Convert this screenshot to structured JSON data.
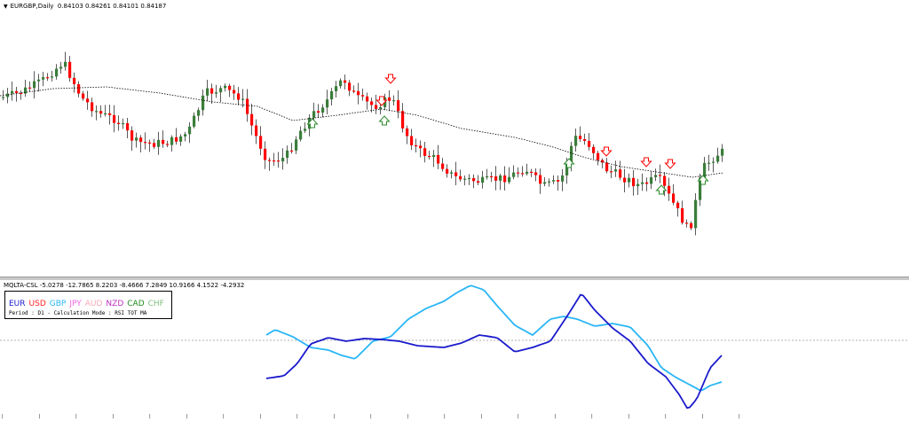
{
  "main_chart": {
    "symbol_title": "EURGBP,Daily",
    "ohlc": "0.84103 0.84261 0.84101 0.84187",
    "bull_color": "#3a7d3a",
    "bear_color": "#ff0000",
    "ma_color": "#000000",
    "buy_arrow_color": "#2e8b2e",
    "sell_arrow_color": "#ff0000"
  },
  "indicator": {
    "title": "MQLTA-CSL -5.0278 -12.7865 8.2203 -8.4666 7.2849 10.9166 4.1522 -4.2932",
    "currencies": [
      {
        "code": "EUR",
        "color": "#1a1acd"
      },
      {
        "code": "USD",
        "color": "#ff2020"
      },
      {
        "code": "GBP",
        "color": "#29b6f6"
      },
      {
        "code": "JPY",
        "color": "#f06ae6"
      },
      {
        "code": "AUD",
        "color": "#f5a9b8"
      },
      {
        "code": "NZD",
        "color": "#c030c0"
      },
      {
        "code": "CAD",
        "color": "#1c8a1c"
      },
      {
        "code": "CHF",
        "color": "#7fbf7f"
      }
    ],
    "info": "Period : D1 - Calculation Mode : RSI TOT MA",
    "eur_line_color": "#1a1acd",
    "gbp_line_color": "#29b6f6",
    "zero_line_color": "#999999"
  }
}
